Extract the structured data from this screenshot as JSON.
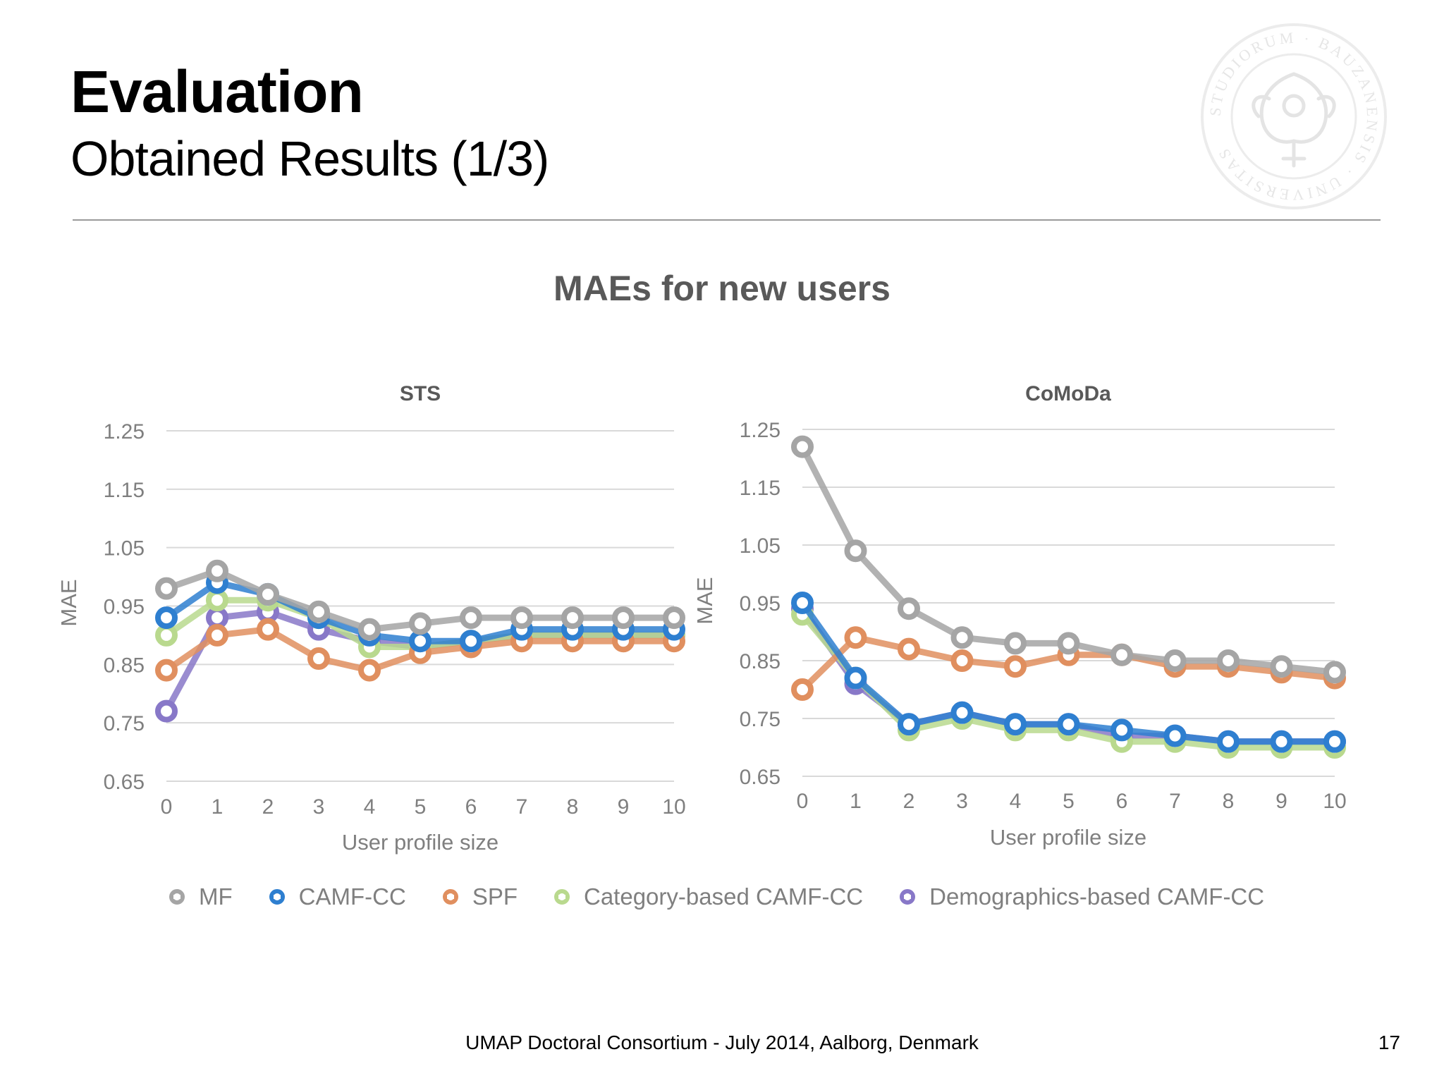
{
  "slide": {
    "title": "Evaluation",
    "subtitle": "Obtained Results (1/3)",
    "footer": "UMAP Doctoral Consortium - July 2014, Aalborg, Denmark",
    "page_number": "17",
    "seal_text": "STUDIORUM · BAUZANENSIS · UNIVERSITAS"
  },
  "chart_heading": "MAEs for new users",
  "colors": {
    "MF": "#a5a5a5",
    "CAMF-CC": "#2e7fd0",
    "SPF": "#e08f5f",
    "Category-based CAMF-CC": "#b9d98e",
    "Demographics-based CAMF-CC": "#8878c8"
  },
  "legend": [
    {
      "name": "MF",
      "color": "#a5a5a5"
    },
    {
      "name": "CAMF-CC",
      "color": "#2e7fd0"
    },
    {
      "name": "SPF",
      "color": "#e08f5f"
    },
    {
      "name": "Category-based CAMF-CC",
      "color": "#b9d98e"
    },
    {
      "name": "Demographics-based CAMF-CC",
      "color": "#8878c8"
    }
  ],
  "chart_data": [
    {
      "type": "line",
      "title": "STS",
      "xlabel": "User profile size",
      "ylabel": "MAE",
      "x": [
        0,
        1,
        2,
        3,
        4,
        5,
        6,
        7,
        8,
        9,
        10
      ],
      "ylim": [
        0.65,
        1.25
      ],
      "yticks": [
        "1.25",
        "1.15",
        "1.05",
        "0.95",
        "0.85",
        "0.75",
        "0.65"
      ],
      "grid": true,
      "legend_position": "bottom",
      "series": [
        {
          "name": "Demographics-based CAMF-CC",
          "values": [
            0.77,
            0.93,
            0.94,
            0.91,
            0.89,
            0.88,
            0.89,
            0.9,
            0.9,
            0.9,
            0.9
          ]
        },
        {
          "name": "Category-based CAMF-CC",
          "values": [
            0.9,
            0.96,
            0.96,
            0.93,
            0.88,
            0.88,
            0.89,
            0.9,
            0.9,
            0.9,
            0.9
          ]
        },
        {
          "name": "SPF",
          "values": [
            0.84,
            0.9,
            0.91,
            0.86,
            0.84,
            0.87,
            0.88,
            0.89,
            0.89,
            0.89,
            0.89
          ]
        },
        {
          "name": "CAMF-CC",
          "values": [
            0.93,
            0.99,
            0.97,
            0.93,
            0.9,
            0.89,
            0.89,
            0.91,
            0.91,
            0.91,
            0.91
          ]
        },
        {
          "name": "MF",
          "values": [
            0.98,
            1.01,
            0.97,
            0.94,
            0.91,
            0.92,
            0.93,
            0.93,
            0.93,
            0.93,
            0.93
          ]
        }
      ]
    },
    {
      "type": "line",
      "title": "CoMoDa",
      "xlabel": "User profile size",
      "ylabel": "MAE",
      "x": [
        0,
        1,
        2,
        3,
        4,
        5,
        6,
        7,
        8,
        9,
        10
      ],
      "ylim": [
        0.65,
        1.25
      ],
      "yticks": [
        "1.25",
        "1.15",
        "1.05",
        "0.95",
        "0.85",
        "0.75",
        "0.65"
      ],
      "grid": true,
      "legend_position": "bottom",
      "series": [
        {
          "name": "Demographics-based CAMF-CC",
          "values": [
            0.94,
            0.81,
            0.74,
            0.76,
            0.74,
            0.74,
            0.72,
            0.72,
            0.71,
            0.71,
            0.71
          ]
        },
        {
          "name": "Category-based CAMF-CC",
          "values": [
            0.93,
            0.82,
            0.73,
            0.75,
            0.73,
            0.73,
            0.71,
            0.71,
            0.7,
            0.7,
            0.7
          ]
        },
        {
          "name": "SPF",
          "values": [
            0.8,
            0.89,
            0.87,
            0.85,
            0.84,
            0.86,
            0.86,
            0.84,
            0.84,
            0.83,
            0.82
          ]
        },
        {
          "name": "CAMF-CC",
          "values": [
            0.95,
            0.82,
            0.74,
            0.76,
            0.74,
            0.74,
            0.73,
            0.72,
            0.71,
            0.71,
            0.71
          ]
        },
        {
          "name": "MF",
          "values": [
            1.22,
            1.04,
            0.94,
            0.89,
            0.88,
            0.88,
            0.86,
            0.85,
            0.85,
            0.84,
            0.83
          ]
        }
      ]
    }
  ]
}
